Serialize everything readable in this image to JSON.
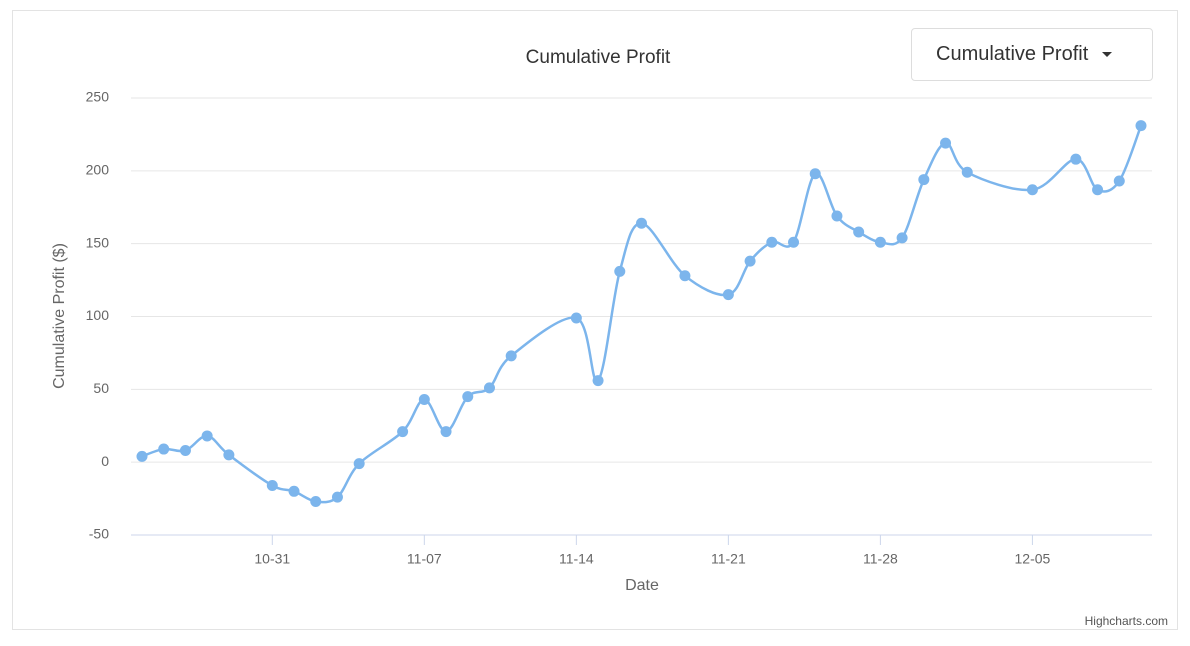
{
  "chart_data": {
    "type": "line",
    "title": "Cumulative Profit",
    "x_label": "Date",
    "y_label": "Cumulative Profit ($)",
    "credits": "Highcharts.com",
    "x": [
      "10-25",
      "10-26",
      "10-27",
      "10-28",
      "10-29",
      "10-31",
      "11-01",
      "11-02",
      "11-03",
      "11-04",
      "11-06",
      "11-07",
      "11-08",
      "11-09",
      "11-10",
      "11-11",
      "11-14",
      "11-15",
      "11-16",
      "11-17",
      "11-19",
      "11-21",
      "11-22",
      "11-23",
      "11-24",
      "11-25",
      "11-26",
      "11-27",
      "11-28",
      "11-29",
      "11-30",
      "12-01",
      "12-02",
      "12-05",
      "12-07",
      "12-08",
      "12-09",
      "12-10"
    ],
    "series": [
      {
        "name": "Cumulative Profit",
        "color": "#7cb5ec",
        "values": [
          4,
          9,
          8,
          18,
          5,
          -16,
          -20,
          -27,
          -24,
          -1,
          21,
          43,
          21,
          45,
          51,
          73,
          99,
          56,
          131,
          164,
          128,
          115,
          138,
          151,
          151,
          198,
          169,
          158,
          151,
          154,
          194,
          219,
          199,
          187,
          208,
          187,
          193,
          231
        ]
      }
    ],
    "xlim": [
      "10-25",
      "12-10"
    ],
    "xticks": [
      "10-31",
      "11-07",
      "11-14",
      "11-21",
      "11-28",
      "12-05"
    ],
    "ylim": [
      -50,
      250
    ],
    "yticks": [
      -50,
      0,
      50,
      100,
      150,
      200,
      250
    ],
    "grid": true
  },
  "dropdown": {
    "label": "Cumulative Profit"
  }
}
